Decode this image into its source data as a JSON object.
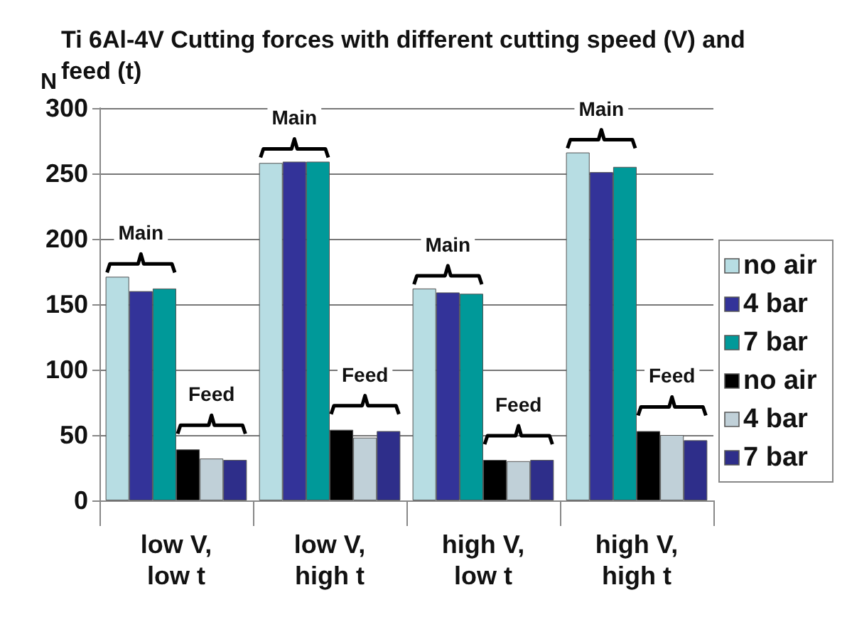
{
  "chart_data": {
    "type": "bar",
    "title": "Ti 6Al-4V Cutting forces with different cutting speed (V) and feed (t)",
    "ylabel": "N",
    "categories": [
      "low V,\nlow t",
      "low V,\nhigh t",
      "high V,\nlow t",
      "high V,\nhigh t"
    ],
    "series": [
      {
        "name": "no air",
        "color": "#b7dde3",
        "values": [
          171,
          258,
          162,
          266
        ]
      },
      {
        "name": "4 bar",
        "color": "#333399",
        "values": [
          160,
          259,
          159,
          251
        ]
      },
      {
        "name": "7 bar",
        "color": "#009999",
        "values": [
          162,
          259,
          158,
          255
        ]
      },
      {
        "name": "no air",
        "color": "#000000",
        "values": [
          39,
          54,
          31,
          53
        ]
      },
      {
        "name": "4 bar",
        "color": "#c0d0d8",
        "values": [
          32,
          48,
          30,
          50
        ]
      },
      {
        "name": "7 bar",
        "color": "#2e2e8a",
        "values": [
          31,
          53,
          31,
          46
        ]
      }
    ],
    "ylim": [
      0,
      300
    ],
    "yticks": [
      0,
      50,
      100,
      150,
      200,
      250,
      300
    ],
    "grid": "y",
    "legend": "right",
    "annotations": [
      "Main",
      "Feed",
      "Main",
      "Feed",
      "Main",
      "Feed",
      "Main",
      "Feed"
    ]
  }
}
